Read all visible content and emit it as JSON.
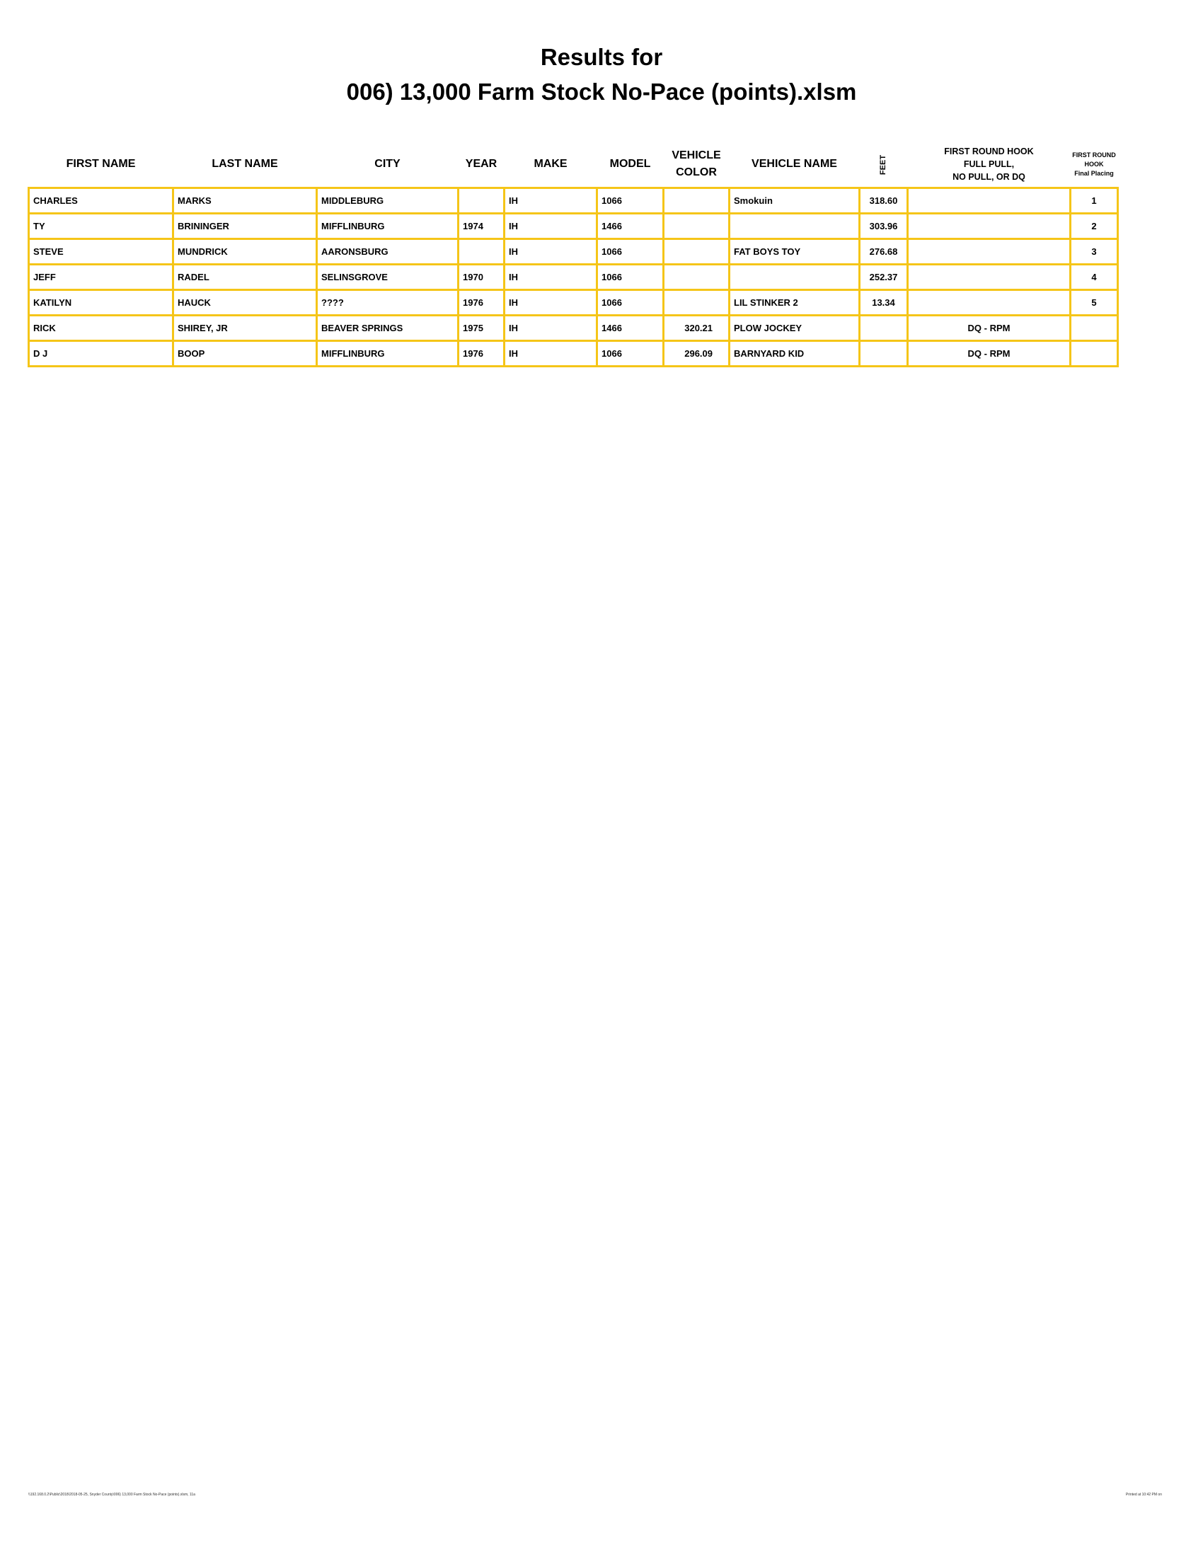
{
  "title": {
    "line1": "Results for",
    "line2": "006) 13,000 Farm Stock No-Pace (points).xlsm"
  },
  "columns": [
    "FIRST NAME",
    "LAST NAME",
    "CITY",
    "YEAR",
    "MAKE",
    "MODEL",
    "VEHICLE COLOR",
    "VEHICLE NAME",
    "FEET",
    "FIRST ROUND HOOK FULL PULL, NO PULL, OR DQ",
    "FIRST ROUND HOOK Final Placing"
  ],
  "header": {
    "vehicle_color_1": "VEHICLE",
    "vehicle_color_2": "COLOR",
    "hook_1": "FIRST ROUND HOOK",
    "hook_2": "FULL PULL,",
    "hook_3": "NO PULL, OR DQ",
    "place_1": "FIRST ROUND",
    "place_2": "HOOK",
    "place_3": "Final Placing"
  },
  "rows": [
    [
      "CHARLES",
      "MARKS",
      "MIDDLEBURG",
      "",
      "IH",
      "1066",
      "",
      "Smokuin",
      "318.60",
      "",
      "1"
    ],
    [
      "TY",
      "BRININGER",
      "MIFFLINBURG",
      "1974",
      "IH",
      "1466",
      "",
      "",
      "303.96",
      "",
      "2"
    ],
    [
      "STEVE",
      "MUNDRICK",
      "AARONSBURG",
      "",
      "IH",
      "1066",
      "",
      "FAT BOYS TOY",
      "276.68",
      "",
      "3"
    ],
    [
      "JEFF",
      "RADEL",
      "SELINSGROVE",
      "1970",
      "IH",
      "1066",
      "",
      "",
      "252.37",
      "",
      "4"
    ],
    [
      "KATILYN",
      "HAUCK",
      "????",
      "1976",
      "IH",
      "1066",
      "",
      "LIL STINKER 2",
      "13.34",
      "",
      "5"
    ],
    [
      "RICK",
      "SHIREY, JR",
      "BEAVER SPRINGS",
      "1975",
      "IH",
      "1466",
      "320.21",
      "PLOW JOCKEY",
      "",
      "DQ - RPM",
      ""
    ],
    [
      "D J",
      "BOOP",
      "MIFFLINBURG",
      "1976",
      "IH",
      "1066",
      "296.09",
      "BARNYARD KID",
      "",
      "DQ - RPM",
      ""
    ]
  ],
  "footer": {
    "left": "\\\\192.168.0.2\\Public\\2018\\2018-05-25, Snyder County\\006) 13,000 Farm Stock No-Pace (points).xlsm, 11a",
    "right": "Printed at 10:42 PM on"
  },
  "colors": {
    "grid": "#f5c518"
  }
}
